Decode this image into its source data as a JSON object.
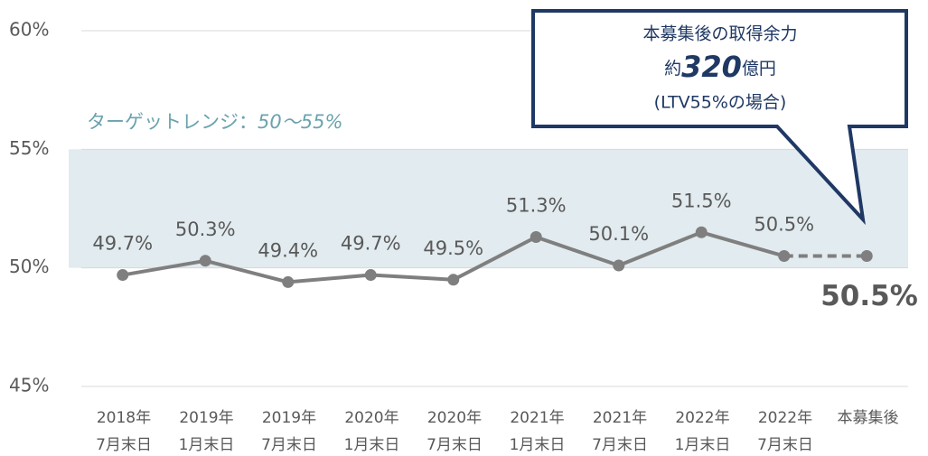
{
  "chart_data": {
    "type": "line",
    "categories": [
      "2018年\n7月末日",
      "2019年\n1月末日",
      "2019年\n7月末日",
      "2020年\n1月末日",
      "2020年\n7月末日",
      "2021年\n1月末日",
      "2021年\n7月末日",
      "2022年\n1月末日",
      "2022年\n7月末日",
      "本募集後"
    ],
    "series": [
      {
        "name": "LTV",
        "color": "#7f7f7f",
        "values": [
          49.7,
          50.3,
          49.4,
          49.7,
          49.5,
          51.3,
          50.1,
          51.5,
          50.5,
          50.5
        ],
        "value_labels": [
          "49.7%",
          "50.3%",
          "49.4%",
          "49.7%",
          "49.5%",
          "51.3%",
          "50.1%",
          "51.5%",
          "50.5%",
          "50.5%"
        ]
      }
    ],
    "ylim": [
      45,
      60
    ],
    "yticks": [
      {
        "value": 45,
        "label": "45%"
      },
      {
        "value": 50,
        "label": "50%"
      },
      {
        "value": 55,
        "label": "55%"
      },
      {
        "value": 60,
        "label": "60%"
      }
    ],
    "grid": true,
    "target_range": [
      50,
      55
    ],
    "target_label": "ターゲットレンジ：",
    "target_range_label": "50～55%",
    "callout": {
      "line1": "本募集後の取得余力",
      "prefix": "約",
      "amount": "320",
      "unit": "億円",
      "note": "(LTV55%の場合)"
    }
  }
}
